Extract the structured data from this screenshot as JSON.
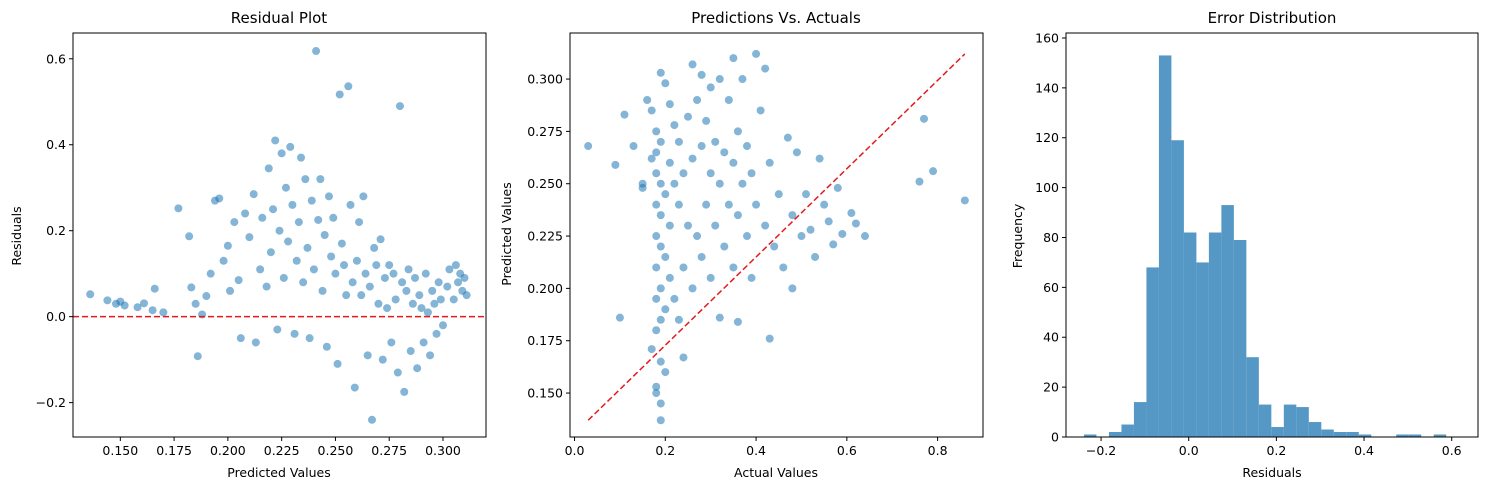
{
  "colors": {
    "points": "#1f77b4",
    "bars": "#5597c5",
    "refline": "#e41a1c"
  },
  "chart_data": [
    {
      "type": "scatter",
      "title": "Residual Plot",
      "xlabel": "Predicted Values",
      "ylabel": "Residuals",
      "xlim": [
        0.128,
        0.32
      ],
      "ylim": [
        -0.28,
        0.66
      ],
      "xticks": [
        0.15,
        0.175,
        0.2,
        0.225,
        0.25,
        0.275,
        0.3
      ],
      "xtick_labels": [
        "0.150",
        "0.175",
        "0.200",
        "0.225",
        "0.250",
        "0.275",
        "0.300"
      ],
      "yticks": [
        -0.2,
        0.0,
        0.2,
        0.4,
        0.6
      ],
      "ytick_labels": [
        "−0.2",
        "0.0",
        "0.2",
        "0.4",
        "0.6"
      ],
      "reference_line": {
        "y": 0.0,
        "style": "dashed"
      },
      "points": [
        [
          0.136,
          0.052
        ],
        [
          0.144,
          0.038
        ],
        [
          0.148,
          0.03
        ],
        [
          0.15,
          0.035
        ],
        [
          0.152,
          0.026
        ],
        [
          0.158,
          0.022
        ],
        [
          0.161,
          0.031
        ],
        [
          0.165,
          0.015
        ],
        [
          0.166,
          0.065
        ],
        [
          0.17,
          0.01
        ],
        [
          0.177,
          0.252
        ],
        [
          0.182,
          0.187
        ],
        [
          0.183,
          0.068
        ],
        [
          0.185,
          0.03
        ],
        [
          0.186,
          -0.092
        ],
        [
          0.188,
          0.005
        ],
        [
          0.19,
          0.048
        ],
        [
          0.192,
          0.1
        ],
        [
          0.194,
          0.27
        ],
        [
          0.196,
          0.275
        ],
        [
          0.198,
          0.13
        ],
        [
          0.2,
          0.165
        ],
        [
          0.201,
          0.06
        ],
        [
          0.203,
          0.22
        ],
        [
          0.205,
          0.085
        ],
        [
          0.206,
          -0.05
        ],
        [
          0.208,
          0.24
        ],
        [
          0.21,
          0.185
        ],
        [
          0.212,
          0.285
        ],
        [
          0.213,
          -0.06
        ],
        [
          0.215,
          0.11
        ],
        [
          0.216,
          0.23
        ],
        [
          0.218,
          0.07
        ],
        [
          0.219,
          0.345
        ],
        [
          0.22,
          0.15
        ],
        [
          0.221,
          0.25
        ],
        [
          0.222,
          0.41
        ],
        [
          0.223,
          -0.03
        ],
        [
          0.224,
          0.2
        ],
        [
          0.225,
          0.38
        ],
        [
          0.226,
          0.09
        ],
        [
          0.227,
          0.3
        ],
        [
          0.228,
          0.175
        ],
        [
          0.229,
          0.395
        ],
        [
          0.23,
          0.26
        ],
        [
          0.231,
          -0.04
        ],
        [
          0.232,
          0.13
        ],
        [
          0.233,
          0.22
        ],
        [
          0.234,
          0.37
        ],
        [
          0.235,
          0.08
        ],
        [
          0.236,
          0.32
        ],
        [
          0.237,
          0.16
        ],
        [
          0.238,
          -0.05
        ],
        [
          0.239,
          0.27
        ],
        [
          0.24,
          0.11
        ],
        [
          0.241,
          0.618
        ],
        [
          0.242,
          0.225
        ],
        [
          0.243,
          0.32
        ],
        [
          0.244,
          0.06
        ],
        [
          0.245,
          0.19
        ],
        [
          0.246,
          -0.07
        ],
        [
          0.247,
          0.28
        ],
        [
          0.248,
          0.14
        ],
        [
          0.249,
          0.23
        ],
        [
          0.25,
          0.1
        ],
        [
          0.251,
          -0.11
        ],
        [
          0.252,
          0.517
        ],
        [
          0.253,
          0.17
        ],
        [
          0.254,
          0.12
        ],
        [
          0.255,
          0.05
        ],
        [
          0.256,
          0.536
        ],
        [
          0.257,
          0.26
        ],
        [
          0.258,
          0.08
        ],
        [
          0.259,
          -0.165
        ],
        [
          0.26,
          0.13
        ],
        [
          0.261,
          0.22
        ],
        [
          0.262,
          0.05
        ],
        [
          0.263,
          0.28
        ],
        [
          0.264,
          0.1
        ],
        [
          0.265,
          -0.09
        ],
        [
          0.266,
          0.07
        ],
        [
          0.267,
          -0.24
        ],
        [
          0.268,
          0.16
        ],
        [
          0.269,
          0.12
        ],
        [
          0.27,
          0.03
        ],
        [
          0.271,
          0.18
        ],
        [
          0.272,
          -0.1
        ],
        [
          0.273,
          0.09
        ],
        [
          0.274,
          0.02
        ],
        [
          0.275,
          0.12
        ],
        [
          0.276,
          -0.06
        ],
        [
          0.277,
          0.1
        ],
        [
          0.278,
          0.04
        ],
        [
          0.279,
          -0.13
        ],
        [
          0.28,
          0.49
        ],
        [
          0.281,
          0.08
        ],
        [
          0.282,
          -0.175
        ],
        [
          0.283,
          0.06
        ],
        [
          0.284,
          0.11
        ],
        [
          0.285,
          -0.08
        ],
        [
          0.286,
          0.03
        ],
        [
          0.287,
          0.09
        ],
        [
          0.288,
          -0.12
        ],
        [
          0.289,
          0.05
        ],
        [
          0.29,
          0.02
        ],
        [
          0.291,
          -0.06
        ],
        [
          0.292,
          0.1
        ],
        [
          0.293,
          0.01
        ],
        [
          0.294,
          -0.09
        ],
        [
          0.295,
          0.06
        ],
        [
          0.296,
          0.03
        ],
        [
          0.297,
          -0.04
        ],
        [
          0.298,
          0.08
        ],
        [
          0.299,
          0.04
        ],
        [
          0.3,
          -0.02
        ],
        [
          0.302,
          0.07
        ],
        [
          0.303,
          0.11
        ],
        [
          0.305,
          0.04
        ],
        [
          0.306,
          0.12
        ],
        [
          0.307,
          0.08
        ],
        [
          0.308,
          0.1
        ],
        [
          0.309,
          0.06
        ],
        [
          0.31,
          0.09
        ],
        [
          0.311,
          0.05
        ]
      ]
    },
    {
      "type": "scatter",
      "title": "Predictions Vs. Actuals",
      "xlabel": "Actual Values",
      "ylabel": "Predicted Values",
      "xlim": [
        -0.01,
        0.9
      ],
      "ylim": [
        0.129,
        0.322
      ],
      "xticks": [
        0.0,
        0.2,
        0.4,
        0.6,
        0.8
      ],
      "xtick_labels": [
        "0.0",
        "0.2",
        "0.4",
        "0.6",
        "0.8"
      ],
      "yticks": [
        0.15,
        0.175,
        0.2,
        0.225,
        0.25,
        0.275,
        0.3
      ],
      "ytick_labels": [
        "0.150",
        "0.175",
        "0.200",
        "0.225",
        "0.250",
        "0.275",
        "0.300"
      ],
      "reference_line": {
        "from": [
          0.03,
          0.137
        ],
        "to": [
          0.86,
          0.312
        ],
        "style": "dashed"
      },
      "points": [
        [
          0.03,
          0.268
        ],
        [
          0.09,
          0.259
        ],
        [
          0.1,
          0.186
        ],
        [
          0.11,
          0.283
        ],
        [
          0.13,
          0.268
        ],
        [
          0.15,
          0.25
        ],
        [
          0.15,
          0.248
        ],
        [
          0.16,
          0.29
        ],
        [
          0.17,
          0.262
        ],
        [
          0.17,
          0.285
        ],
        [
          0.17,
          0.171
        ],
        [
          0.18,
          0.153
        ],
        [
          0.18,
          0.15
        ],
        [
          0.18,
          0.18
        ],
        [
          0.18,
          0.195
        ],
        [
          0.18,
          0.21
        ],
        [
          0.18,
          0.225
        ],
        [
          0.18,
          0.24
        ],
        [
          0.18,
          0.255
        ],
        [
          0.18,
          0.265
        ],
        [
          0.18,
          0.275
        ],
        [
          0.19,
          0.165
        ],
        [
          0.19,
          0.185
        ],
        [
          0.19,
          0.2
        ],
        [
          0.19,
          0.22
        ],
        [
          0.19,
          0.235
        ],
        [
          0.19,
          0.25
        ],
        [
          0.19,
          0.27
        ],
        [
          0.19,
          0.137
        ],
        [
          0.19,
          0.145
        ],
        [
          0.19,
          0.303
        ],
        [
          0.2,
          0.16
        ],
        [
          0.2,
          0.19
        ],
        [
          0.2,
          0.215
        ],
        [
          0.2,
          0.245
        ],
        [
          0.2,
          0.298
        ],
        [
          0.21,
          0.205
        ],
        [
          0.21,
          0.23
        ],
        [
          0.21,
          0.26
        ],
        [
          0.21,
          0.288
        ],
        [
          0.22,
          0.195
        ],
        [
          0.22,
          0.25
        ],
        [
          0.22,
          0.278
        ],
        [
          0.23,
          0.185
        ],
        [
          0.23,
          0.24
        ],
        [
          0.23,
          0.27
        ],
        [
          0.24,
          0.167
        ],
        [
          0.24,
          0.21
        ],
        [
          0.24,
          0.255
        ],
        [
          0.25,
          0.23
        ],
        [
          0.25,
          0.282
        ],
        [
          0.26,
          0.2
        ],
        [
          0.26,
          0.262
        ],
        [
          0.26,
          0.307
        ],
        [
          0.27,
          0.225
        ],
        [
          0.27,
          0.29
        ],
        [
          0.28,
          0.215
        ],
        [
          0.28,
          0.268
        ],
        [
          0.28,
          0.302
        ],
        [
          0.29,
          0.24
        ],
        [
          0.29,
          0.28
        ],
        [
          0.3,
          0.205
        ],
        [
          0.3,
          0.255
        ],
        [
          0.3,
          0.296
        ],
        [
          0.31,
          0.23
        ],
        [
          0.31,
          0.27
        ],
        [
          0.32,
          0.186
        ],
        [
          0.32,
          0.25
        ],
        [
          0.32,
          0.3
        ],
        [
          0.33,
          0.22
        ],
        [
          0.33,
          0.265
        ],
        [
          0.34,
          0.24
        ],
        [
          0.34,
          0.29
        ],
        [
          0.35,
          0.21
        ],
        [
          0.35,
          0.26
        ],
        [
          0.35,
          0.31
        ],
        [
          0.36,
          0.184
        ],
        [
          0.36,
          0.235
        ],
        [
          0.36,
          0.275
        ],
        [
          0.37,
          0.25
        ],
        [
          0.37,
          0.3
        ],
        [
          0.38,
          0.225
        ],
        [
          0.38,
          0.268
        ],
        [
          0.39,
          0.205
        ],
        [
          0.39,
          0.255
        ],
        [
          0.4,
          0.24
        ],
        [
          0.4,
          0.312
        ],
        [
          0.41,
          0.285
        ],
        [
          0.42,
          0.23
        ],
        [
          0.42,
          0.305
        ],
        [
          0.43,
          0.176
        ],
        [
          0.43,
          0.26
        ],
        [
          0.44,
          0.22
        ],
        [
          0.45,
          0.245
        ],
        [
          0.46,
          0.21
        ],
        [
          0.47,
          0.272
        ],
        [
          0.48,
          0.2
        ],
        [
          0.48,
          0.235
        ],
        [
          0.49,
          0.265
        ],
        [
          0.5,
          0.225
        ],
        [
          0.51,
          0.245
        ],
        [
          0.52,
          0.228
        ],
        [
          0.53,
          0.215
        ],
        [
          0.54,
          0.262
        ],
        [
          0.55,
          0.24
        ],
        [
          0.56,
          0.232
        ],
        [
          0.57,
          0.221
        ],
        [
          0.58,
          0.248
        ],
        [
          0.59,
          0.226
        ],
        [
          0.61,
          0.236
        ],
        [
          0.62,
          0.231
        ],
        [
          0.64,
          0.225
        ],
        [
          0.76,
          0.251
        ],
        [
          0.77,
          0.281
        ],
        [
          0.79,
          0.256
        ],
        [
          0.86,
          0.242
        ]
      ]
    },
    {
      "type": "bar",
      "title": "Error Distribution",
      "xlabel": "Residuals",
      "ylabel": "Frequency",
      "xlim": [
        -0.28,
        0.66
      ],
      "ylim": [
        0,
        162
      ],
      "xticks": [
        -0.2,
        0.0,
        0.2,
        0.4,
        0.6
      ],
      "xtick_labels": [
        "−0.2",
        "0.0",
        "0.2",
        "0.4",
        "0.6"
      ],
      "yticks": [
        0,
        20,
        40,
        60,
        80,
        100,
        120,
        140,
        160
      ],
      "ytick_labels": [
        "0",
        "20",
        "40",
        "60",
        "80",
        "100",
        "120",
        "140",
        "160"
      ],
      "bin_start": -0.239,
      "bin_width": 0.0285,
      "values": [
        1,
        0,
        2,
        5,
        14,
        68,
        153,
        119,
        82,
        70,
        82,
        93,
        79,
        32,
        13,
        4,
        13,
        12,
        6,
        3,
        2,
        2,
        1,
        0,
        0,
        1,
        1,
        0,
        1,
        0
      ]
    }
  ]
}
